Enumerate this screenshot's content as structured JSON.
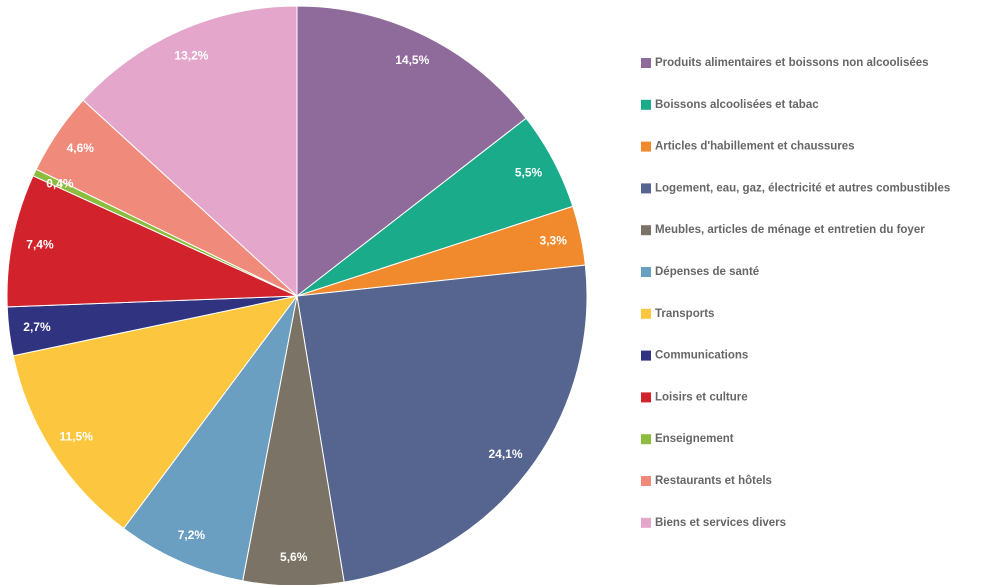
{
  "chart_data": {
    "type": "pie",
    "categories": [
      "Produits alimentaires et boissons non alcoolisées",
      "Boissons alcoolisées et tabac",
      "Articles d'habillement et chaussures",
      "Logement, eau, gaz, électricité et autres combustibles",
      "Meubles, articles de ménage et entretien du foyer",
      "Dépenses de santé",
      "Transports",
      "Communications",
      "Loisirs et culture",
      "Enseignement",
      "Restaurants et hôtels",
      "Biens et services divers"
    ],
    "values": [
      14.5,
      5.5,
      3.3,
      24.1,
      5.6,
      7.2,
      11.5,
      2.7,
      7.4,
      0.4,
      4.6,
      13.2
    ],
    "value_labels": [
      "14,5%",
      "5,5%",
      "3,3%",
      "24,1%",
      "5,6%",
      "7,2%",
      "11,5%",
      "2,7%",
      "7,4%",
      "0,4%",
      "4,6%",
      "13,2%"
    ],
    "colors": [
      "#8e6b9a",
      "#1aab8a",
      "#f08a2c",
      "#55658f",
      "#7b7466",
      "#6a9fc1",
      "#fcc73f",
      "#2f3380",
      "#d2232c",
      "#8cbd3f",
      "#f08b7c",
      "#e4a7cb"
    ],
    "legend": "right"
  }
}
